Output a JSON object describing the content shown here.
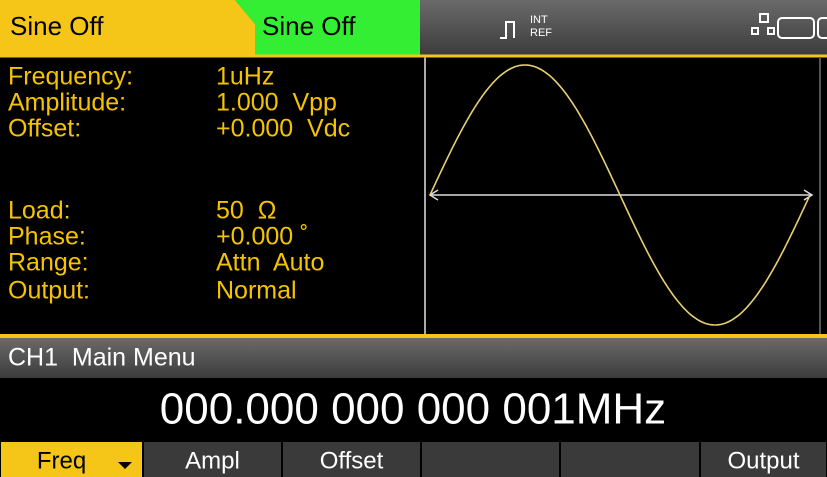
{
  "header": {
    "tab1": "Sine Off",
    "tab2": "Sine Off",
    "ref_top": "INT",
    "ref_bottom": "REF"
  },
  "parameters": [
    {
      "label": "Frequency:",
      "value": "1uHz"
    },
    {
      "label": "Amplitude:",
      "value": "1.000  Vpp"
    },
    {
      "label": "Offset:",
      "value": "+0.000  Vdc"
    },
    {
      "label": "Load:",
      "value": "50  Ω"
    },
    {
      "label": "Phase:",
      "value": "+0.000 ˚"
    },
    {
      "label": "Range:",
      "value": "Attn  Auto"
    },
    {
      "label": "Output:",
      "value": "Normal"
    }
  ],
  "menu_title": "CH1  Main Menu",
  "frequency_display": "000.000 000 000 001MHz",
  "softkeys": [
    "Freq",
    "Ampl",
    "Offset",
    "Output"
  ]
}
